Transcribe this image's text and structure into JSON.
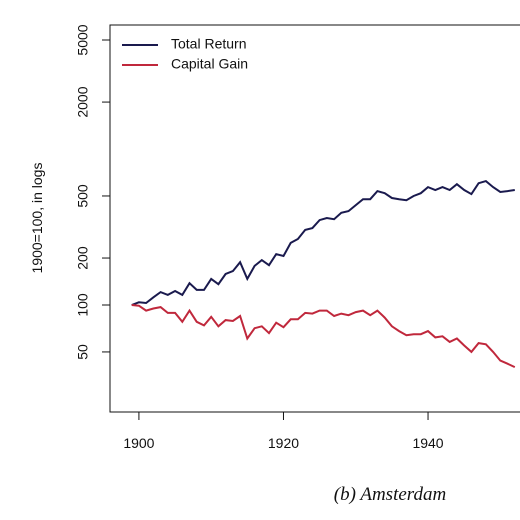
{
  "chart_data": {
    "type": "line",
    "caption": "(b) Amsterdam",
    "ylabel": "1900=100, in logs",
    "log_y": true,
    "legend": "top-left",
    "x": [
      1899,
      1900,
      1901,
      1902,
      1903,
      1904,
      1905,
      1906,
      1907,
      1908,
      1909,
      1910,
      1911,
      1912,
      1913,
      1914,
      1915,
      1916,
      1917,
      1918,
      1919,
      1920,
      1921,
      1922,
      1923,
      1924,
      1925,
      1926,
      1927,
      1928,
      1929,
      1930,
      1931,
      1932,
      1933,
      1934,
      1935,
      1936,
      1937,
      1938,
      1939,
      1940,
      1941,
      1942,
      1943,
      1944,
      1945,
      1946,
      1947,
      1948,
      1949,
      1950,
      1951,
      1952
    ],
    "series": [
      {
        "name": "Total Return",
        "color": "#1a1a4e",
        "values": [
          100,
          104,
          103,
          112,
          121,
          116,
          123,
          116,
          138,
          125,
          125,
          147,
          136,
          158,
          165,
          188,
          147,
          178,
          194,
          180,
          212,
          206,
          250,
          265,
          303,
          311,
          350,
          361,
          355,
          390,
          400,
          437,
          477,
          477,
          537,
          521,
          485,
          477,
          470,
          500,
          521,
          570,
          546,
          570,
          546,
          595,
          546,
          514,
          604,
          623,
          570,
          530,
          537,
          546
        ]
      },
      {
        "name": "Capital Gain",
        "color": "#c0283c",
        "values": [
          100,
          99,
          92,
          95,
          97,
          89,
          89,
          78,
          92,
          78,
          74,
          84,
          73,
          80,
          79,
          85,
          61,
          71,
          73,
          66,
          77,
          72,
          81,
          81,
          89,
          88,
          92,
          92,
          85,
          88,
          86,
          90,
          92,
          86,
          92,
          83,
          73,
          68,
          64,
          65,
          65,
          68,
          62,
          63,
          58,
          61,
          55,
          50,
          57,
          56,
          50,
          44,
          42,
          40
        ]
      }
    ],
    "xlim": [
      1896,
      1953
    ],
    "xticks": [
      1900,
      1920,
      1940
    ],
    "ylim": [
      20.6,
      6240
    ],
    "yticks": [
      50,
      100,
      200,
      500,
      2000,
      5000
    ]
  }
}
